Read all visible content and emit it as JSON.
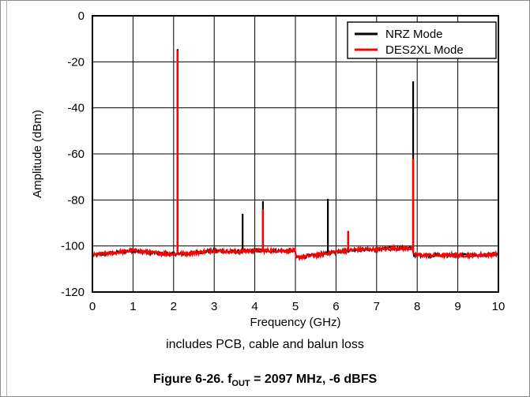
{
  "chart_data": {
    "type": "line",
    "xlabel": "Frequency (GHz)",
    "ylabel": "Amplitude (dBm)",
    "xlim": [
      0,
      10
    ],
    "ylim": [
      -120,
      0
    ],
    "xticks": [
      "0",
      "1",
      "2",
      "3",
      "4",
      "5",
      "6",
      "7",
      "8",
      "9",
      "10"
    ],
    "yticks": [
      "0",
      "-20",
      "-40",
      "-60",
      "-80",
      "-100",
      "-120"
    ],
    "grid": true,
    "legend_position": "top-right",
    "series": [
      {
        "name": "NRZ Mode",
        "color": "#000000",
        "noise_floor": [
          [
            0,
            -104
          ],
          [
            0.5,
            -103
          ],
          [
            1.0,
            -102
          ],
          [
            1.5,
            -103
          ],
          [
            2.0,
            -103.5
          ],
          [
            2.5,
            -103
          ],
          [
            3.0,
            -102
          ],
          [
            3.5,
            -102.5
          ],
          [
            4.0,
            -102
          ],
          [
            4.5,
            -102
          ],
          [
            4.99,
            -102
          ],
          [
            5.01,
            -105
          ],
          [
            5.5,
            -104
          ],
          [
            6.0,
            -102.5
          ],
          [
            6.5,
            -101.5
          ],
          [
            7.0,
            -101.5
          ],
          [
            7.5,
            -101
          ],
          [
            7.89,
            -101
          ],
          [
            7.91,
            -104
          ],
          [
            8.5,
            -104
          ],
          [
            9.0,
            -104
          ],
          [
            9.5,
            -104
          ],
          [
            10.0,
            -103.5
          ]
        ],
        "spurs": [
          [
            2.097,
            -14.5
          ],
          [
            3.7,
            -86
          ],
          [
            4.2,
            -80.5
          ],
          [
            5.8,
            -79.5
          ],
          [
            6.3,
            -93.5
          ],
          [
            7.9,
            -28.5
          ]
        ]
      },
      {
        "name": "DES2XL Mode",
        "color": "#ff0000",
        "noise_floor": [
          [
            0,
            -104
          ],
          [
            0.5,
            -103
          ],
          [
            1.0,
            -102
          ],
          [
            1.5,
            -103
          ],
          [
            2.0,
            -103.5
          ],
          [
            2.5,
            -103
          ],
          [
            3.0,
            -102
          ],
          [
            3.5,
            -102.5
          ],
          [
            4.0,
            -102
          ],
          [
            4.5,
            -102
          ],
          [
            4.99,
            -102
          ],
          [
            5.01,
            -105
          ],
          [
            5.5,
            -104
          ],
          [
            6.0,
            -102.5
          ],
          [
            6.5,
            -101.5
          ],
          [
            7.0,
            -101.5
          ],
          [
            7.5,
            -101
          ],
          [
            7.89,
            -101
          ],
          [
            7.91,
            -104
          ],
          [
            8.5,
            -104
          ],
          [
            9.0,
            -104
          ],
          [
            9.5,
            -104
          ],
          [
            10.0,
            -103.5
          ]
        ],
        "spurs": [
          [
            2.097,
            -15
          ],
          [
            4.2,
            -84
          ],
          [
            6.3,
            -93.5
          ],
          [
            7.9,
            -62
          ]
        ]
      }
    ]
  },
  "caption_note": "includes PCB, cable and balun loss",
  "figure_caption": {
    "prefix": "Figure 6-26. f",
    "subscript": "OUT",
    "suffix": " = 2097 MHz, -6 dBFS"
  }
}
